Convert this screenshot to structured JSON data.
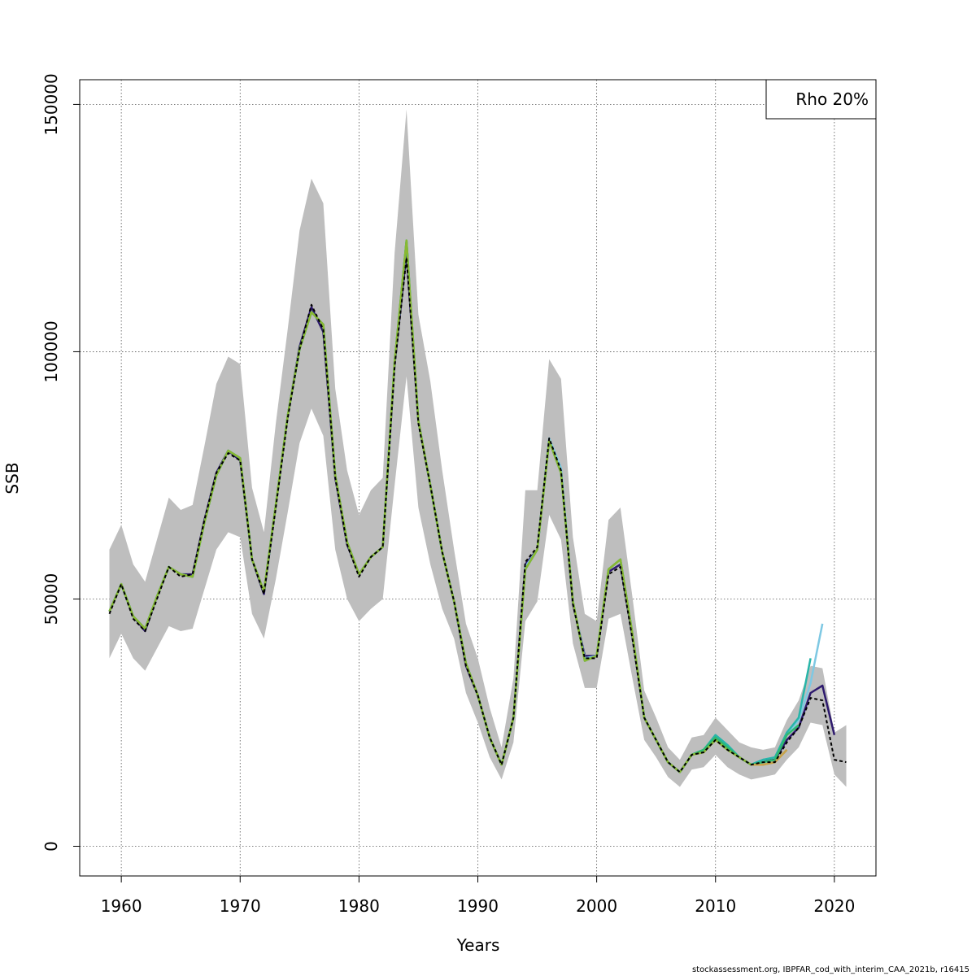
{
  "chart_data": {
    "type": "line",
    "xlabel": "Years",
    "ylabel": "SSB",
    "xlim": [
      1956.5,
      2023.5
    ],
    "ylim": [
      -6000,
      155000
    ],
    "xticks": [
      1960,
      1970,
      1980,
      1990,
      2000,
      2010,
      2020
    ],
    "yticks": [
      0,
      50000,
      100000,
      150000
    ],
    "grid": true,
    "legend": {
      "position": "top-right",
      "text": "Rho 20%"
    },
    "ci_band": {
      "x": [
        1959,
        1960,
        1961,
        1962,
        1963,
        1964,
        1965,
        1966,
        1967,
        1968,
        1969,
        1970,
        1971,
        1972,
        1973,
        1974,
        1975,
        1976,
        1977,
        1978,
        1979,
        1980,
        1981,
        1982,
        1983,
        1984,
        1985,
        1986,
        1987,
        1988,
        1989,
        1990,
        1991,
        1992,
        1993,
        1994,
        1995,
        1996,
        1997,
        1998,
        1999,
        2000,
        2001,
        2002,
        2003,
        2004,
        2005,
        2006,
        2007,
        2008,
        2009,
        2010,
        2011,
        2012,
        2013,
        2014,
        2015,
        2016,
        2017,
        2018,
        2019,
        2020,
        2021
      ],
      "lower": [
        38000,
        43000,
        38000,
        35500,
        40000,
        44500,
        43500,
        44000,
        52000,
        60000,
        63500,
        62500,
        47000,
        42000,
        54000,
        67500,
        81500,
        88500,
        83000,
        60000,
        50000,
        45500,
        48000,
        50000,
        73000,
        95000,
        68500,
        57000,
        48000,
        42000,
        31000,
        25000,
        18000,
        13500,
        21000,
        45500,
        49500,
        67000,
        62000,
        41000,
        32000,
        32000,
        46000,
        47000,
        34000,
        21500,
        18000,
        14000,
        12000,
        15500,
        16000,
        18500,
        16000,
        14500,
        13500,
        14000,
        14500,
        17500,
        20000,
        25000,
        24500,
        14500,
        12000
      ],
      "upper": [
        60000,
        65000,
        57000,
        53500,
        62000,
        70500,
        68000,
        69000,
        81000,
        93500,
        99000,
        97500,
        72500,
        63500,
        85500,
        104500,
        124500,
        135000,
        130000,
        92500,
        76000,
        67000,
        72000,
        74500,
        120000,
        149000,
        107500,
        94000,
        76000,
        60000,
        45000,
        38000,
        28000,
        20000,
        34000,
        72000,
        72000,
        98500,
        94500,
        62500,
        47000,
        45500,
        66000,
        68500,
        50500,
        31500,
        26000,
        20000,
        17500,
        22000,
        22500,
        26000,
        23500,
        21000,
        20000,
        19500,
        20000,
        25500,
        29500,
        36500,
        36000,
        23000,
        24500
      ]
    },
    "series": [
      {
        "color": "#000000",
        "dash": true,
        "x": [
          1959,
          1960,
          1961,
          1962,
          1963,
          1964,
          1965,
          1966,
          1967,
          1968,
          1969,
          1970,
          1971,
          1972,
          1973,
          1974,
          1975,
          1976,
          1977,
          1978,
          1979,
          1980,
          1981,
          1982,
          1983,
          1984,
          1985,
          1986,
          1987,
          1988,
          1989,
          1990,
          1991,
          1992,
          1993,
          1994,
          1995,
          1996,
          1997,
          1998,
          1999,
          2000,
          2001,
          2002,
          2003,
          2004,
          2005,
          2006,
          2007,
          2008,
          2009,
          2010,
          2011,
          2012,
          2013,
          2014,
          2015,
          2016,
          2017,
          2018,
          2019,
          2020,
          2021
        ],
        "values": [
          47000,
          53000,
          46000,
          43500,
          50000,
          56500,
          54500,
          55000,
          66000,
          75500,
          79500,
          78000,
          58000,
          51000,
          68500,
          86500,
          100500,
          109500,
          104500,
          74500,
          61000,
          54500,
          58500,
          60500,
          97000,
          119000,
          85500,
          73000,
          59500,
          49500,
          36500,
          30500,
          22000,
          16500,
          26000,
          57500,
          60500,
          82500,
          76000,
          49000,
          38000,
          38000,
          55000,
          56500,
          42000,
          26000,
          21500,
          17000,
          15000,
          18500,
          19000,
          21500,
          19500,
          18000,
          16500,
          17000,
          17000,
          21000,
          24000,
          30000,
          29500,
          17500,
          17000
        ]
      },
      {
        "color": "#2e1a6e",
        "dash": false,
        "x": [
          1959,
          1960,
          1961,
          1962,
          1963,
          1964,
          1965,
          1966,
          1967,
          1968,
          1969,
          1970,
          1971,
          1972,
          1973,
          1974,
          1975,
          1976,
          1977,
          1978,
          1979,
          1980,
          1981,
          1982,
          1983,
          1984,
          1985,
          1986,
          1987,
          1988,
          1989,
          1990,
          1991,
          1992,
          1993,
          1994,
          1995,
          1996,
          1997,
          1998,
          1999,
          2000,
          2001,
          2002,
          2003,
          2004,
          2005,
          2006,
          2007,
          2008,
          2009,
          2010,
          2011,
          2012,
          2013,
          2014,
          2015,
          2016,
          2017,
          2018,
          2019,
          2020
        ],
        "values": [
          47500,
          53000,
          46500,
          43500,
          50500,
          56500,
          55000,
          55000,
          66000,
          75500,
          80000,
          78000,
          58000,
          51000,
          69000,
          87000,
          101000,
          109000,
          104000,
          74500,
          61000,
          55000,
          58500,
          60500,
          97500,
          120000,
          86000,
          73000,
          59500,
          49500,
          36500,
          30500,
          22000,
          16500,
          26000,
          57000,
          60000,
          82000,
          76000,
          49000,
          38500,
          38500,
          55500,
          57000,
          42500,
          26000,
          21500,
          17000,
          15000,
          18500,
          19500,
          22000,
          20000,
          18000,
          16500,
          17500,
          17500,
          21500,
          24000,
          31000,
          32500,
          22500
        ]
      },
      {
        "color": "#7ec8e3",
        "dash": false,
        "x": [
          1959,
          1960,
          1961,
          1962,
          1963,
          1964,
          1965,
          1966,
          1967,
          1968,
          1969,
          1970,
          1971,
          1972,
          1973,
          1974,
          1975,
          1976,
          1977,
          1978,
          1979,
          1980,
          1981,
          1982,
          1983,
          1984,
          1985,
          1986,
          1987,
          1988,
          1989,
          1990,
          1991,
          1992,
          1993,
          1994,
          1995,
          1996,
          1997,
          1998,
          1999,
          2000,
          2001,
          2002,
          2003,
          2004,
          2005,
          2006,
          2007,
          2008,
          2009,
          2010,
          2011,
          2012,
          2013,
          2014,
          2015,
          2016,
          2017,
          2018,
          2019
        ],
        "values": [
          47500,
          53000,
          46500,
          44000,
          50500,
          56500,
          55000,
          54500,
          65500,
          75000,
          80000,
          78500,
          58000,
          51500,
          69000,
          87000,
          100500,
          108000,
          105500,
          75000,
          61500,
          55000,
          58500,
          60500,
          98000,
          122500,
          86000,
          73000,
          59500,
          49500,
          37000,
          30500,
          22000,
          16500,
          26000,
          56500,
          60000,
          82500,
          76500,
          49500,
          38000,
          38500,
          56000,
          58000,
          43000,
          26000,
          21500,
          17000,
          15000,
          18500,
          19500,
          22000,
          20000,
          18000,
          16500,
          17500,
          18000,
          22500,
          25500,
          33000,
          45000
        ]
      },
      {
        "color": "#27b5a8",
        "dash": false,
        "x": [
          1959,
          1960,
          1961,
          1962,
          1963,
          1964,
          1965,
          1966,
          1967,
          1968,
          1969,
          1970,
          1971,
          1972,
          1973,
          1974,
          1975,
          1976,
          1977,
          1978,
          1979,
          1980,
          1981,
          1982,
          1983,
          1984,
          1985,
          1986,
          1987,
          1988,
          1989,
          1990,
          1991,
          1992,
          1993,
          1994,
          1995,
          1996,
          1997,
          1998,
          1999,
          2000,
          2001,
          2002,
          2003,
          2004,
          2005,
          2006,
          2007,
          2008,
          2009,
          2010,
          2011,
          2012,
          2013,
          2014,
          2015,
          2016,
          2017,
          2018
        ],
        "values": [
          47500,
          53000,
          46500,
          44000,
          50500,
          56500,
          55000,
          54500,
          65500,
          75000,
          80000,
          78500,
          58000,
          51500,
          69000,
          87000,
          100500,
          108000,
          105500,
          75000,
          61500,
          55000,
          58500,
          60500,
          98000,
          122500,
          86000,
          73000,
          59500,
          49500,
          37000,
          30500,
          22000,
          16500,
          26000,
          56000,
          60000,
          82000,
          75500,
          49500,
          37500,
          38500,
          56000,
          58000,
          43000,
          26000,
          21500,
          17000,
          15000,
          18500,
          19500,
          22500,
          20500,
          18000,
          16500,
          17500,
          18000,
          23000,
          26000,
          38000
        ]
      },
      {
        "color": "#2eb86e",
        "dash": false,
        "x": [
          1959,
          1960,
          1961,
          1962,
          1963,
          1964,
          1965,
          1966,
          1967,
          1968,
          1969,
          1970,
          1971,
          1972,
          1973,
          1974,
          1975,
          1976,
          1977,
          1978,
          1979,
          1980,
          1981,
          1982,
          1983,
          1984,
          1985,
          1986,
          1987,
          1988,
          1989,
          1990,
          1991,
          1992,
          1993,
          1994,
          1995,
          1996,
          1997,
          1998,
          1999,
          2000,
          2001,
          2002,
          2003,
          2004,
          2005,
          2006,
          2007,
          2008,
          2009,
          2010,
          2011,
          2012,
          2013,
          2014,
          2015,
          2016,
          2017
        ],
        "values": [
          47500,
          53000,
          46500,
          44000,
          50500,
          56500,
          55000,
          54500,
          65500,
          75000,
          80000,
          78500,
          58000,
          51500,
          69000,
          87000,
          100500,
          108000,
          105500,
          75000,
          61500,
          55000,
          58500,
          60500,
          98000,
          122500,
          86000,
          73000,
          59500,
          49500,
          37000,
          30500,
          22000,
          16500,
          26000,
          56000,
          60000,
          82000,
          75500,
          49500,
          37500,
          38500,
          56000,
          58000,
          43000,
          26000,
          21500,
          17000,
          15000,
          18500,
          19500,
          22000,
          20000,
          18000,
          16500,
          17000,
          17500,
          22500,
          24500
        ]
      },
      {
        "color": "#8ab832",
        "dash": false,
        "x": [
          1959,
          1960,
          1961,
          1962,
          1963,
          1964,
          1965,
          1966,
          1967,
          1968,
          1969,
          1970,
          1971,
          1972,
          1973,
          1974,
          1975,
          1976,
          1977,
          1978,
          1979,
          1980,
          1981,
          1982,
          1983,
          1984,
          1985,
          1986,
          1987,
          1988,
          1989,
          1990,
          1991,
          1992,
          1993,
          1994,
          1995,
          1996,
          1997,
          1998,
          1999,
          2000,
          2001,
          2002,
          2003,
          2004,
          2005,
          2006,
          2007,
          2008,
          2009,
          2010,
          2011,
          2012,
          2013,
          2014,
          2015,
          2016
        ],
        "values": [
          47500,
          53000,
          46500,
          44000,
          50500,
          56500,
          55000,
          54500,
          65500,
          75000,
          80000,
          78500,
          58000,
          51500,
          69000,
          87000,
          100500,
          108000,
          105500,
          75000,
          61500,
          55000,
          58500,
          60500,
          98000,
          122500,
          86000,
          73000,
          59500,
          49500,
          37000,
          30500,
          22000,
          16500,
          26000,
          56000,
          60000,
          82000,
          75500,
          49500,
          37500,
          38500,
          56000,
          58000,
          43000,
          26000,
          21500,
          17000,
          15000,
          18500,
          19000,
          21500,
          19500,
          18000,
          16500,
          16500,
          17000,
          19500
        ]
      },
      {
        "color": "#c9a24a",
        "dash": false,
        "x": [
          2013,
          2014,
          2015,
          2016
        ],
        "values": [
          16500,
          16500,
          17000,
          19500
        ]
      }
    ],
    "footer": "stockassessment.org, IBPFAR_cod_with_interim_CAA_2021b, r16415"
  }
}
